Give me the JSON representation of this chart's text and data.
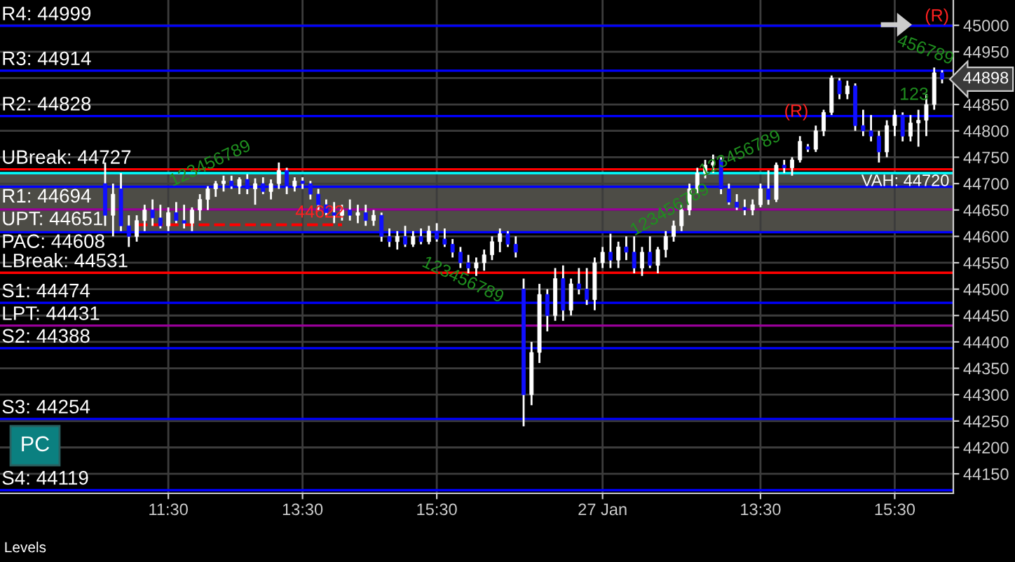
{
  "chart_data": {
    "type": "candlestick",
    "categories": [
      null,
      null,
      null,
      null,
      null,
      null,
      null,
      null,
      "11:30",
      null,
      null,
      null,
      null,
      null,
      null,
      null,
      null,
      null,
      null,
      null,
      null,
      null,
      null,
      null,
      null,
      "13:30",
      null,
      null,
      null,
      null,
      null,
      null,
      null,
      null,
      null,
      null,
      null,
      null,
      null,
      null,
      null,
      null,
      "15:30",
      null,
      null,
      null,
      null,
      null,
      null,
      null,
      null,
      null,
      null,
      null,
      null,
      null,
      null,
      null,
      null,
      null,
      null,
      null,
      null,
      "27 Jan",
      null,
      null,
      null,
      null,
      null,
      null,
      null,
      null,
      null,
      null,
      null,
      null,
      null,
      null,
      null,
      null,
      null,
      null,
      null,
      "13:30",
      null,
      null,
      null,
      null,
      null,
      null,
      null,
      null,
      null,
      null,
      null,
      null,
      null,
      null,
      null,
      null,
      "15:30",
      null,
      null,
      null,
      null,
      null,
      null
    ],
    "ohlc": [
      [
        44700,
        44740,
        44620,
        44640
      ],
      [
        44640,
        44700,
        44600,
        44680
      ],
      [
        44690,
        44720,
        44610,
        44620
      ],
      [
        44620,
        44640,
        44580,
        44600
      ],
      [
        44600,
        44640,
        44590,
        44630
      ],
      [
        44630,
        44660,
        44610,
        44650
      ],
      [
        44650,
        44670,
        44620,
        44635
      ],
      [
        44635,
        44660,
        44615,
        44620
      ],
      [
        44620,
        44655,
        44610,
        44645
      ],
      [
        44645,
        44665,
        44625,
        44630
      ],
      [
        44630,
        44660,
        44615,
        44625
      ],
      [
        44625,
        44655,
        44610,
        44650
      ],
      [
        44650,
        44680,
        44630,
        44670
      ],
      [
        44670,
        44695,
        44650,
        44690
      ],
      [
        44690,
        44705,
        44675,
        44700
      ],
      [
        44700,
        44715,
        44685,
        44705
      ],
      [
        44705,
        44715,
        44690,
        44695
      ],
      [
        44695,
        44712,
        44680,
        44708
      ],
      [
        44708,
        44718,
        44680,
        44690
      ],
      [
        44690,
        44710,
        44660,
        44700
      ],
      [
        44700,
        44712,
        44680,
        44685
      ],
      [
        44685,
        44708,
        44670,
        44700
      ],
      [
        44700,
        44740,
        44690,
        44725
      ],
      [
        44725,
        44730,
        44680,
        44695
      ],
      [
        44695,
        44712,
        44685,
        44705
      ],
      [
        44705,
        44712,
        44690,
        44700
      ],
      [
        44700,
        44705,
        44670,
        44680
      ],
      [
        44680,
        44690,
        44650,
        44660
      ],
      [
        44660,
        44670,
        44640,
        44645
      ],
      [
        44645,
        44665,
        44625,
        44640
      ],
      [
        44640,
        44660,
        44630,
        44650
      ],
      [
        44650,
        44670,
        44630,
        44640
      ],
      [
        44640,
        44660,
        44625,
        44645
      ],
      [
        44645,
        44660,
        44620,
        44630
      ],
      [
        44630,
        44650,
        44620,
        44640
      ],
      [
        44640,
        44645,
        44590,
        44600
      ],
      [
        44600,
        44615,
        44580,
        44590
      ],
      [
        44590,
        44610,
        44575,
        44600
      ],
      [
        44600,
        44620,
        44580,
        44585
      ],
      [
        44585,
        44610,
        44580,
        44600
      ],
      [
        44600,
        44615,
        44585,
        44590
      ],
      [
        44590,
        44620,
        44585,
        44610
      ],
      [
        44610,
        44625,
        44590,
        44595
      ],
      [
        44595,
        44615,
        44580,
        44585
      ],
      [
        44585,
        44595,
        44560,
        44570
      ],
      [
        44570,
        44580,
        44540,
        44550
      ],
      [
        44550,
        44565,
        44530,
        44540
      ],
      [
        44540,
        44560,
        44525,
        44550
      ],
      [
        44550,
        44575,
        44535,
        44565
      ],
      [
        44565,
        44600,
        44555,
        44590
      ],
      [
        44590,
        44615,
        44570,
        44605
      ],
      [
        44605,
        44610,
        44580,
        44585
      ],
      [
        44585,
        44600,
        44560,
        44570
      ],
      [
        44500,
        44520,
        44240,
        44300
      ],
      [
        44300,
        44400,
        44280,
        44380
      ],
      [
        44380,
        44510,
        44360,
        44490
      ],
      [
        44490,
        44500,
        44420,
        44450
      ],
      [
        44450,
        44540,
        44440,
        44520
      ],
      [
        44520,
        44545,
        44440,
        44460
      ],
      [
        44460,
        44520,
        44450,
        44510
      ],
      [
        44510,
        44540,
        44490,
        44500
      ],
      [
        44500,
        44540,
        44470,
        44480
      ],
      [
        44480,
        44560,
        44460,
        44550
      ],
      [
        44550,
        44580,
        44540,
        44570
      ],
      [
        44570,
        44605,
        44540,
        44555
      ],
      [
        44555,
        44590,
        44540,
        44580
      ],
      [
        44580,
        44600,
        44555,
        44570
      ],
      [
        44570,
        44600,
        44530,
        44540
      ],
      [
        44540,
        44580,
        44525,
        44570
      ],
      [
        44570,
        44600,
        44540,
        44545
      ],
      [
        44545,
        44580,
        44530,
        44575
      ],
      [
        44575,
        44610,
        44560,
        44600
      ],
      [
        44600,
        44630,
        44590,
        44620
      ],
      [
        44620,
        44660,
        44610,
        44650
      ],
      [
        44650,
        44700,
        44640,
        44690
      ],
      [
        44690,
        44730,
        44680,
        44720
      ],
      [
        44720,
        44745,
        44710,
        44735
      ],
      [
        44735,
        44755,
        44720,
        44740
      ],
      [
        44745,
        44750,
        44680,
        44690
      ],
      [
        44690,
        44700,
        44660,
        44665
      ],
      [
        44665,
        44680,
        44650,
        44655
      ],
      [
        44655,
        44670,
        44640,
        44650
      ],
      [
        44650,
        44670,
        44640,
        44660
      ],
      [
        44660,
        44700,
        44655,
        44690
      ],
      [
        44690,
        44725,
        44660,
        44670
      ],
      [
        44670,
        44740,
        44665,
        44735
      ],
      [
        44735,
        44745,
        44720,
        44730
      ],
      [
        44730,
        44750,
        44715,
        44745
      ],
      [
        44745,
        44790,
        44740,
        44780
      ],
      [
        44770,
        44775,
        44760,
        44765
      ],
      [
        44765,
        44810,
        44760,
        44800
      ],
      [
        44800,
        44840,
        44790,
        44835
      ],
      [
        44835,
        44905,
        44830,
        44900
      ],
      [
        44895,
        44900,
        44860,
        44870
      ],
      [
        44870,
        44895,
        44860,
        44885
      ],
      [
        44885,
        44890,
        44800,
        44810
      ],
      [
        44810,
        44840,
        44790,
        44800
      ],
      [
        44800,
        44830,
        44780,
        44790
      ],
      [
        44790,
        44800,
        44740,
        44760
      ],
      [
        44760,
        44820,
        44750,
        44810
      ],
      [
        44810,
        44840,
        44790,
        44830
      ],
      [
        44830,
        44835,
        44780,
        44790
      ],
      [
        44790,
        44830,
        44780,
        44815
      ],
      [
        44815,
        44840,
        44770,
        44820
      ],
      [
        44820,
        44870,
        44790,
        44850
      ],
      [
        44850,
        44920,
        44840,
        44910
      ],
      [
        44910,
        44915,
        44890,
        44898
      ]
    ],
    "ylim": [
      44113,
      45048
    ],
    "yticks": [
      44150,
      44200,
      44250,
      44300,
      44350,
      44400,
      44450,
      44500,
      44550,
      44600,
      44650,
      44700,
      44750,
      44800,
      44850,
      {
        "value": 44900,
        "label": null
      },
      44950,
      45000
    ],
    "grid": true,
    "series": [
      {
        "type": "line",
        "color": "#ff0000",
        "line_style": "dashed",
        "values": [
          null,
          null,
          null,
          null,
          44622,
          44622,
          44622,
          44622,
          44622,
          44622,
          44622,
          44622,
          44622,
          44622,
          44622,
          44622,
          44622,
          44622,
          44622,
          44622,
          44622,
          44622,
          44622,
          44622,
          44622,
          44622,
          44622,
          44622,
          44622,
          44622,
          44622,
          null,
          null,
          null,
          null,
          null,
          null,
          null,
          null,
          null,
          null,
          null,
          null,
          null,
          null,
          null,
          null,
          null,
          null,
          null,
          null,
          null,
          null,
          null,
          null,
          null,
          null,
          null,
          null,
          null,
          null,
          null,
          null,
          null,
          null,
          null,
          null,
          null,
          null,
          null,
          null,
          null,
          null,
          null,
          null,
          null,
          null,
          null,
          null,
          null,
          null,
          null,
          null,
          null,
          null,
          null,
          null,
          null,
          null,
          null,
          null,
          null,
          null,
          null,
          null,
          null,
          null,
          null,
          null,
          null,
          null,
          null,
          null,
          null,
          null,
          null,
          null
        ]
      }
    ],
    "bands": [
      {
        "axis": "y",
        "from": 44608,
        "to": 44720,
        "color": "#4d4c46"
      }
    ],
    "ref_lines": [
      {
        "axis": "y",
        "value": 44999,
        "label": "R4: 44999",
        "color": "#0000ff"
      },
      {
        "axis": "y",
        "value": 44914,
        "label": "R3: 44914",
        "color": "#0000ff"
      },
      {
        "axis": "y",
        "value": 44828,
        "label": "R2: 44828",
        "color": "#0000ff"
      },
      {
        "axis": "y",
        "value": 44727,
        "label": "UBreak: 44727",
        "color": "#ff0000"
      },
      {
        "axis": "y",
        "value": 44720,
        "label": "VAH: 44720",
        "color": "#00ffff"
      },
      {
        "axis": "y",
        "value": 44694,
        "label": "R1: 44694",
        "color": "#0000ff"
      },
      {
        "axis": "y",
        "value": 44651,
        "label": "UPT: 44651",
        "color": "#990099"
      },
      {
        "axis": "y",
        "value": 44608,
        "label": "PAC: 44608",
        "color": "#0000ff"
      },
      {
        "axis": "y",
        "value": 44531,
        "label": "LBreak: 44531",
        "color": "#ff0000"
      },
      {
        "axis": "y",
        "value": 44474,
        "label": "S1: 44474",
        "color": "#0000ff"
      },
      {
        "axis": "y",
        "value": 44431,
        "label": "LPT: 44431",
        "color": "#990099"
      },
      {
        "axis": "y",
        "value": 44388,
        "label": "S2: 44388",
        "color": "#0000ff"
      },
      {
        "axis": "y",
        "value": 44254,
        "label": "S3: 44254",
        "color": "#0000ff"
      },
      {
        "axis": "y",
        "value": 44119,
        "label": "S4: 44119",
        "color": "#0000ff"
      }
    ],
    "annotations": [
      "123456789",
      "44622",
      "123456789",
      "123456789",
      "123456789",
      "(R)",
      "123",
      "456789",
      "(R)",
      "44898",
      "PC",
      "Levels"
    ]
  }
}
